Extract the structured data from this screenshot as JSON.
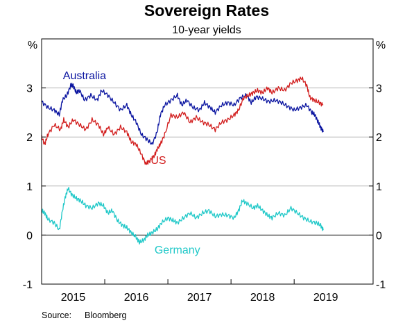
{
  "chart_data": {
    "type": "line",
    "title": "Sovereign Rates",
    "subtitle": "10-year yields",
    "y_unit_left": "%",
    "y_unit_right": "%",
    "source_label": "Source:",
    "source_text": "Bloomberg",
    "ylim": [
      -1,
      4
    ],
    "xlim": [
      2014.5,
      2019.75
    ],
    "y_ticks": [
      {
        "value": -1,
        "label": "-1"
      },
      {
        "value": 0,
        "label": "0"
      },
      {
        "value": 1,
        "label": "1"
      },
      {
        "value": 2,
        "label": "2"
      },
      {
        "value": 3,
        "label": "3"
      }
    ],
    "x_ticks": [
      {
        "value": 2015,
        "label": "2015"
      },
      {
        "value": 2016,
        "label": "2016"
      },
      {
        "value": 2017,
        "label": "2017"
      },
      {
        "value": 2018,
        "label": "2018"
      },
      {
        "value": 2019,
        "label": "2019"
      }
    ],
    "grid": "horizontal",
    "series": [
      {
        "name": "Australia",
        "color": "#0a14a0",
        "label_at": [
          2015.18,
          3.18
        ],
        "points": [
          [
            2014.5,
            2.72
          ],
          [
            2014.6,
            2.6
          ],
          [
            2014.7,
            2.55
          ],
          [
            2014.78,
            2.45
          ],
          [
            2014.83,
            2.75
          ],
          [
            2014.9,
            2.85
          ],
          [
            2014.96,
            3.05
          ],
          [
            2015.0,
            3.05
          ],
          [
            2015.05,
            2.9
          ],
          [
            2015.1,
            2.95
          ],
          [
            2015.18,
            2.75
          ],
          [
            2015.28,
            2.85
          ],
          [
            2015.38,
            2.75
          ],
          [
            2015.45,
            2.95
          ],
          [
            2015.55,
            2.85
          ],
          [
            2015.65,
            2.7
          ],
          [
            2015.75,
            2.55
          ],
          [
            2015.85,
            2.65
          ],
          [
            2015.92,
            2.45
          ],
          [
            2016.0,
            2.3
          ],
          [
            2016.08,
            2.05
          ],
          [
            2016.17,
            1.95
          ],
          [
            2016.25,
            1.85
          ],
          [
            2016.33,
            2.1
          ],
          [
            2016.38,
            2.45
          ],
          [
            2016.45,
            2.65
          ],
          [
            2016.55,
            2.75
          ],
          [
            2016.65,
            2.85
          ],
          [
            2016.72,
            2.65
          ],
          [
            2016.8,
            2.75
          ],
          [
            2016.9,
            2.6
          ],
          [
            2017.0,
            2.55
          ],
          [
            2017.08,
            2.7
          ],
          [
            2017.17,
            2.6
          ],
          [
            2017.25,
            2.5
          ],
          [
            2017.35,
            2.65
          ],
          [
            2017.45,
            2.7
          ],
          [
            2017.55,
            2.65
          ],
          [
            2017.65,
            2.8
          ],
          [
            2017.75,
            2.85
          ],
          [
            2017.82,
            2.7
          ],
          [
            2017.9,
            2.82
          ],
          [
            2018.0,
            2.78
          ],
          [
            2018.1,
            2.72
          ],
          [
            2018.2,
            2.75
          ],
          [
            2018.3,
            2.7
          ],
          [
            2018.4,
            2.62
          ],
          [
            2018.5,
            2.55
          ],
          [
            2018.6,
            2.6
          ],
          [
            2018.7,
            2.65
          ],
          [
            2018.78,
            2.5
          ],
          [
            2018.83,
            2.45
          ],
          [
            2018.88,
            2.3
          ],
          [
            2018.92,
            2.2
          ],
          [
            2018.96,
            2.1
          ]
        ]
      },
      {
        "name": "US",
        "color": "#d21e1e",
        "label_at": [
          2016.35,
          1.45
        ],
        "points": [
          [
            2014.5,
            2.0
          ],
          [
            2014.55,
            1.85
          ],
          [
            2014.6,
            2.05
          ],
          [
            2014.7,
            2.25
          ],
          [
            2014.8,
            2.15
          ],
          [
            2014.85,
            2.35
          ],
          [
            2014.92,
            2.2
          ],
          [
            2015.0,
            2.35
          ],
          [
            2015.1,
            2.25
          ],
          [
            2015.2,
            2.15
          ],
          [
            2015.3,
            2.35
          ],
          [
            2015.4,
            2.25
          ],
          [
            2015.48,
            2.05
          ],
          [
            2015.55,
            2.2
          ],
          [
            2015.65,
            2.05
          ],
          [
            2015.75,
            2.2
          ],
          [
            2015.85,
            2.1
          ],
          [
            2015.92,
            1.9
          ],
          [
            2016.0,
            1.85
          ],
          [
            2016.08,
            1.65
          ],
          [
            2016.15,
            1.45
          ],
          [
            2016.2,
            1.5
          ],
          [
            2016.28,
            1.6
          ],
          [
            2016.33,
            1.75
          ],
          [
            2016.38,
            1.85
          ],
          [
            2016.45,
            2.05
          ],
          [
            2016.55,
            2.45
          ],
          [
            2016.65,
            2.4
          ],
          [
            2016.75,
            2.5
          ],
          [
            2016.85,
            2.3
          ],
          [
            2016.95,
            2.4
          ],
          [
            2017.05,
            2.3
          ],
          [
            2017.15,
            2.25
          ],
          [
            2017.25,
            2.15
          ],
          [
            2017.35,
            2.3
          ],
          [
            2017.45,
            2.35
          ],
          [
            2017.55,
            2.45
          ],
          [
            2017.62,
            2.55
          ],
          [
            2017.7,
            2.8
          ],
          [
            2017.78,
            2.85
          ],
          [
            2017.85,
            2.9
          ],
          [
            2017.92,
            2.95
          ],
          [
            2018.0,
            2.9
          ],
          [
            2018.08,
            3.0
          ],
          [
            2018.15,
            2.9
          ],
          [
            2018.25,
            3.0
          ],
          [
            2018.35,
            2.95
          ],
          [
            2018.45,
            3.1
          ],
          [
            2018.55,
            3.15
          ],
          [
            2018.62,
            3.2
          ],
          [
            2018.7,
            3.05
          ],
          [
            2018.75,
            2.8
          ],
          [
            2018.82,
            2.75
          ],
          [
            2018.9,
            2.7
          ],
          [
            2018.96,
            2.65
          ]
        ]
      },
      {
        "name": "Germany",
        "color": "#1fc8c8",
        "label_at": [
          2016.65,
          -0.38
        ],
        "points": [
          [
            2014.5,
            0.5
          ],
          [
            2014.55,
            0.45
          ],
          [
            2014.6,
            0.32
          ],
          [
            2014.7,
            0.25
          ],
          [
            2014.78,
            0.1
          ],
          [
            2014.83,
            0.5
          ],
          [
            2014.88,
            0.8
          ],
          [
            2014.92,
            0.95
          ],
          [
            2014.98,
            0.82
          ],
          [
            2015.05,
            0.75
          ],
          [
            2015.12,
            0.7
          ],
          [
            2015.2,
            0.6
          ],
          [
            2015.3,
            0.55
          ],
          [
            2015.4,
            0.65
          ],
          [
            2015.48,
            0.6
          ],
          [
            2015.55,
            0.45
          ],
          [
            2015.62,
            0.5
          ],
          [
            2015.7,
            0.3
          ],
          [
            2015.78,
            0.2
          ],
          [
            2015.85,
            0.15
          ],
          [
            2015.92,
            0.05
          ],
          [
            2016.0,
            -0.05
          ],
          [
            2016.05,
            -0.15
          ],
          [
            2016.12,
            -0.1
          ],
          [
            2016.18,
            0.0
          ],
          [
            2016.25,
            0.05
          ],
          [
            2016.33,
            0.12
          ],
          [
            2016.4,
            0.25
          ],
          [
            2016.5,
            0.35
          ],
          [
            2016.58,
            0.3
          ],
          [
            2016.65,
            0.25
          ],
          [
            2016.75,
            0.35
          ],
          [
            2016.85,
            0.45
          ],
          [
            2016.95,
            0.35
          ],
          [
            2017.05,
            0.45
          ],
          [
            2017.15,
            0.5
          ],
          [
            2017.25,
            0.38
          ],
          [
            2017.35,
            0.42
          ],
          [
            2017.45,
            0.4
          ],
          [
            2017.55,
            0.35
          ],
          [
            2017.62,
            0.5
          ],
          [
            2017.68,
            0.7
          ],
          [
            2017.75,
            0.65
          ],
          [
            2017.85,
            0.55
          ],
          [
            2017.92,
            0.6
          ],
          [
            2018.0,
            0.5
          ],
          [
            2018.08,
            0.4
          ],
          [
            2018.15,
            0.35
          ],
          [
            2018.25,
            0.45
          ],
          [
            2018.35,
            0.4
          ],
          [
            2018.45,
            0.55
          ],
          [
            2018.55,
            0.45
          ],
          [
            2018.65,
            0.35
          ],
          [
            2018.75,
            0.28
          ],
          [
            2018.85,
            0.25
          ],
          [
            2018.92,
            0.2
          ],
          [
            2018.96,
            0.1
          ]
        ]
      }
    ]
  }
}
